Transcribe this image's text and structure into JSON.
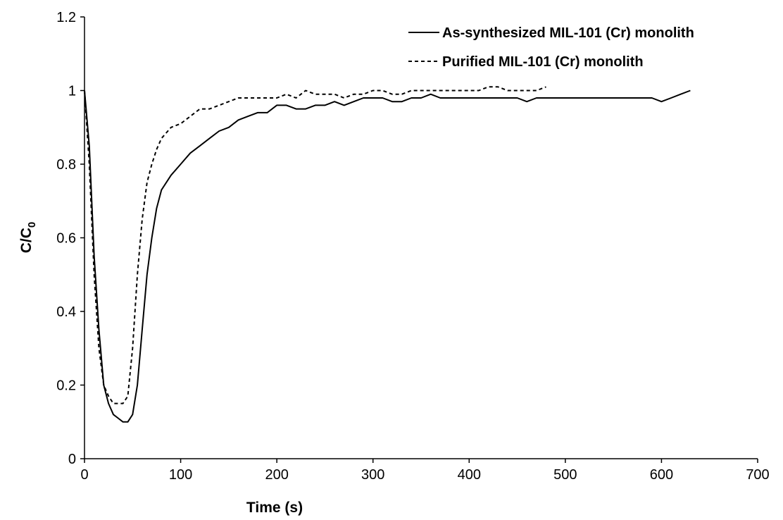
{
  "chart_data": {
    "type": "line",
    "title": "",
    "xlabel": "Time (s)",
    "ylabel_main": "C/C",
    "ylabel_sub": "0",
    "xlim": [
      0,
      700
    ],
    "ylim": [
      0,
      1.2
    ],
    "xticks": [
      0,
      100,
      200,
      300,
      400,
      500,
      600,
      700
    ],
    "yticks": [
      0,
      0.2,
      0.4,
      0.6,
      0.8,
      1,
      1.2
    ],
    "ytick_labels": [
      "0",
      "0.2",
      "0.4",
      "0.6",
      "0.8",
      "1",
      "1.2"
    ],
    "grid": false,
    "legend_position": "top-right",
    "series": [
      {
        "name": "As-synthesized MIL-101 (Cr) monolith",
        "style": "solid",
        "color": "#000000",
        "x": [
          0,
          5,
          10,
          15,
          20,
          25,
          30,
          35,
          40,
          45,
          50,
          55,
          60,
          65,
          70,
          75,
          80,
          90,
          100,
          110,
          120,
          130,
          140,
          150,
          160,
          170,
          180,
          190,
          200,
          210,
          220,
          230,
          240,
          250,
          260,
          270,
          280,
          290,
          300,
          310,
          320,
          330,
          340,
          350,
          360,
          370,
          380,
          390,
          400,
          410,
          420,
          430,
          440,
          450,
          460,
          470,
          480,
          490,
          500,
          510,
          520,
          530,
          540,
          550,
          560,
          570,
          580,
          590,
          600,
          610,
          620,
          630
        ],
        "y": [
          1.0,
          0.85,
          0.55,
          0.35,
          0.2,
          0.15,
          0.12,
          0.11,
          0.1,
          0.1,
          0.12,
          0.2,
          0.35,
          0.5,
          0.6,
          0.68,
          0.73,
          0.77,
          0.8,
          0.83,
          0.85,
          0.87,
          0.89,
          0.9,
          0.92,
          0.93,
          0.94,
          0.94,
          0.96,
          0.96,
          0.95,
          0.95,
          0.96,
          0.96,
          0.97,
          0.96,
          0.97,
          0.98,
          0.98,
          0.98,
          0.97,
          0.97,
          0.98,
          0.98,
          0.99,
          0.98,
          0.98,
          0.98,
          0.98,
          0.98,
          0.98,
          0.98,
          0.98,
          0.98,
          0.97,
          0.98,
          0.98,
          0.98,
          0.98,
          0.98,
          0.98,
          0.98,
          0.98,
          0.98,
          0.98,
          0.98,
          0.98,
          0.98,
          0.97,
          0.98,
          0.99,
          1.0
        ]
      },
      {
        "name": "Purified MIL-101 (Cr) monolith",
        "style": "dashed",
        "color": "#000000",
        "x": [
          0,
          5,
          10,
          15,
          20,
          25,
          30,
          35,
          40,
          45,
          50,
          55,
          60,
          65,
          70,
          75,
          80,
          90,
          100,
          110,
          120,
          130,
          140,
          150,
          160,
          170,
          180,
          190,
          200,
          210,
          220,
          230,
          240,
          250,
          260,
          270,
          280,
          290,
          300,
          310,
          320,
          330,
          340,
          350,
          360,
          370,
          380,
          390,
          400,
          410,
          420,
          430,
          440,
          450,
          460,
          470,
          480
        ],
        "y": [
          1.0,
          0.8,
          0.5,
          0.3,
          0.2,
          0.17,
          0.15,
          0.15,
          0.15,
          0.17,
          0.3,
          0.5,
          0.65,
          0.75,
          0.8,
          0.84,
          0.87,
          0.9,
          0.91,
          0.93,
          0.95,
          0.95,
          0.96,
          0.97,
          0.98,
          0.98,
          0.98,
          0.98,
          0.98,
          0.99,
          0.98,
          1.0,
          0.99,
          0.99,
          0.99,
          0.98,
          0.99,
          0.99,
          1.0,
          1.0,
          0.99,
          0.99,
          1.0,
          1.0,
          1.0,
          1.0,
          1.0,
          1.0,
          1.0,
          1.0,
          1.01,
          1.01,
          1.0,
          1.0,
          1.0,
          1.0,
          1.01
        ]
      }
    ]
  }
}
